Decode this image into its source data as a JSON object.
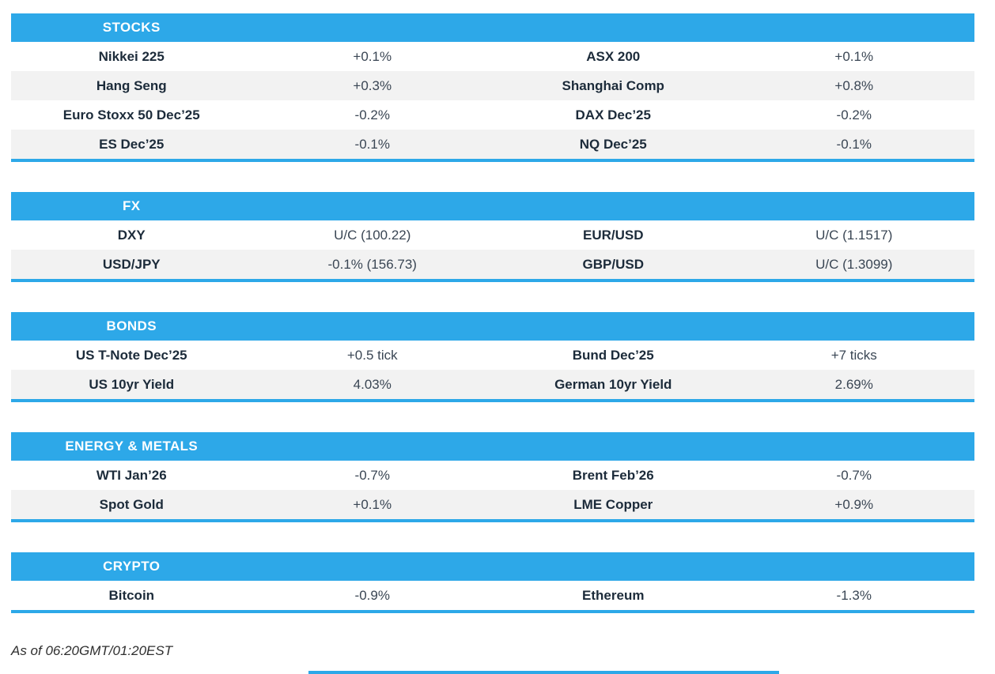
{
  "colors": {
    "accent": "#2da8e8",
    "row_alt": "#f2f2f2",
    "header_text": "#ffffff",
    "label_text": "#1c2b3a"
  },
  "chart_data": [
    {
      "type": "table",
      "title": "STOCKS",
      "rows": [
        [
          "Nikkei 225",
          "+0.1%",
          "ASX 200",
          "+0.1%"
        ],
        [
          "Hang Seng",
          "+0.3%",
          "Shanghai Comp",
          "+0.8%"
        ],
        [
          "Euro Stoxx 50 Dec’25",
          "-0.2%",
          "DAX Dec’25",
          "-0.2%"
        ],
        [
          "ES Dec’25",
          "-0.1%",
          "NQ Dec’25",
          "-0.1%"
        ]
      ]
    },
    {
      "type": "table",
      "title": "FX",
      "rows": [
        [
          "DXY",
          "U/C (100.22)",
          "EUR/USD",
          "U/C (1.1517)"
        ],
        [
          "USD/JPY",
          "-0.1% (156.73)",
          "GBP/USD",
          "U/C (1.3099)"
        ]
      ]
    },
    {
      "type": "table",
      "title": "BONDS",
      "rows": [
        [
          "US T-Note Dec’25",
          "+0.5 tick",
          "Bund Dec’25",
          "+7 ticks"
        ],
        [
          "US 10yr Yield",
          "4.03%",
          "German 10yr Yield",
          "2.69%"
        ]
      ]
    },
    {
      "type": "table",
      "title": "ENERGY & METALS",
      "rows": [
        [
          "WTI Jan’26",
          "-0.7%",
          "Brent Feb’26",
          "-0.7%"
        ],
        [
          "Spot Gold",
          "+0.1%",
          "LME Copper",
          "+0.9%"
        ]
      ]
    },
    {
      "type": "table",
      "title": "CRYPTO",
      "rows": [
        [
          "Bitcoin",
          "-0.9%",
          "Ethereum",
          "-1.3%"
        ]
      ]
    }
  ],
  "footer": {
    "as_of": "As of 06:20GMT/01:20EST"
  }
}
